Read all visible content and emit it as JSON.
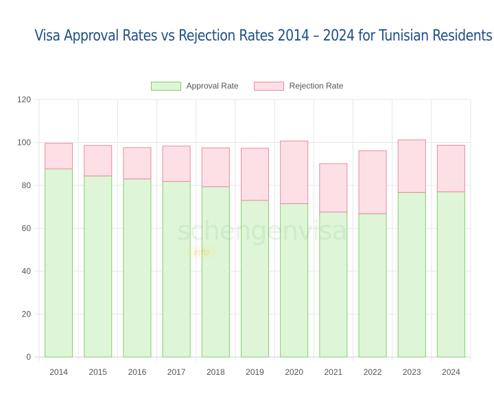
{
  "chart_data": {
    "type": "bar",
    "stacked": true,
    "title": "Visa Approval Rates vs Rejection Rates 2014 – 2024 for Tunisian Residents",
    "categories": [
      "2014",
      "2015",
      "2016",
      "2017",
      "2018",
      "2019",
      "2020",
      "2021",
      "2022",
      "2023",
      "2024"
    ],
    "series": [
      {
        "name": "Approval Rate",
        "values": [
          87.7,
          84.4,
          83.0,
          81.8,
          79.4,
          73.0,
          71.5,
          67.6,
          66.8,
          76.7,
          77.0
        ],
        "color": "#dff5d8",
        "border": "#7fcf6b"
      },
      {
        "name": "Rejection Rate",
        "values": [
          11.9,
          14.2,
          14.6,
          16.5,
          18.1,
          24.3,
          29.2,
          22.5,
          29.3,
          24.5,
          21.7
        ],
        "color": "#fde0e6",
        "border": "#e98aa0"
      }
    ],
    "ylim": [
      0,
      120
    ],
    "yticks": [
      0,
      20,
      40,
      60,
      80,
      100,
      120
    ],
    "grid": true,
    "legend": "top-center"
  },
  "watermark": {
    "text": "schengenvisa",
    "sub": "info"
  }
}
